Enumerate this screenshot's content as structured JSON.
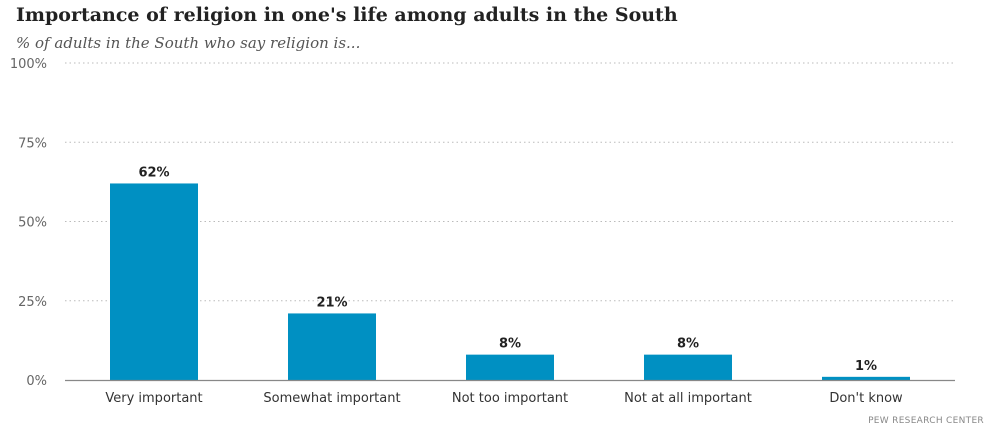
{
  "chart_data": {
    "type": "bar",
    "title": "Importance of religion in one's life among adults in the South",
    "subtitle": "% of adults in the South who say religion is...",
    "categories": [
      "Very important",
      "Somewhat important",
      "Not too important",
      "Not at all important",
      "Don't know"
    ],
    "values": [
      62,
      21,
      8,
      8,
      1
    ],
    "data_labels": [
      "62%",
      "21%",
      "8%",
      "8%",
      "1%"
    ],
    "yticks": [
      0,
      25,
      50,
      75,
      100
    ],
    "ytick_labels": [
      "0%",
      "25%",
      "50%",
      "75%",
      "100%"
    ],
    "ylim": [
      0,
      100
    ],
    "grid": true,
    "bar_color": "#0090c2",
    "source": "PEW RESEARCH CENTER"
  }
}
